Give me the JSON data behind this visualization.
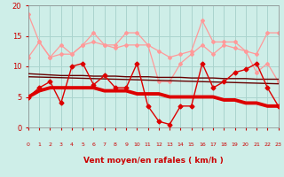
{
  "x": [
    0,
    1,
    2,
    3,
    4,
    5,
    6,
    7,
    8,
    9,
    10,
    11,
    12,
    13,
    14,
    15,
    16,
    17,
    18,
    19,
    20,
    21,
    22,
    23
  ],
  "series": {
    "light_pink_top": [
      18.5,
      14.0,
      11.5,
      13.5,
      12.0,
      13.5,
      15.5,
      13.5,
      13.5,
      15.5,
      15.5,
      13.5,
      12.5,
      11.5,
      12.0,
      12.5,
      17.5,
      14.0,
      14.0,
      14.0,
      12.5,
      12.0,
      15.5,
      15.5
    ],
    "light_pink_mid": [
      11.5,
      14.0,
      11.5,
      12.0,
      12.0,
      13.5,
      14.0,
      13.5,
      13.0,
      13.5,
      13.5,
      13.5,
      7.5,
      7.5,
      10.5,
      12.0,
      13.5,
      12.0,
      13.5,
      13.0,
      12.5,
      9.0,
      10.5,
      7.5
    ],
    "dark_line1": [
      8.8,
      8.7,
      8.6,
      8.5,
      8.5,
      8.5,
      8.4,
      8.4,
      8.4,
      8.3,
      8.3,
      8.3,
      8.2,
      8.2,
      8.2,
      8.1,
      8.1,
      8.1,
      8.0,
      8.0,
      8.0,
      7.9,
      7.9,
      7.9
    ],
    "dark_line2": [
      8.3,
      8.25,
      8.2,
      8.15,
      8.1,
      8.05,
      8.0,
      7.95,
      7.9,
      7.85,
      7.8,
      7.75,
      7.7,
      7.65,
      7.6,
      7.55,
      7.5,
      7.45,
      7.4,
      7.35,
      7.3,
      7.25,
      7.2,
      7.15
    ],
    "medium_red": [
      5.0,
      6.5,
      7.5,
      4.0,
      10.0,
      10.5,
      7.0,
      8.5,
      6.5,
      6.5,
      10.5,
      3.5,
      1.0,
      0.5,
      3.5,
      3.5,
      10.5,
      6.5,
      7.5,
      9.0,
      9.5,
      10.5,
      6.5,
      3.5
    ],
    "dark_red_thick": [
      5.0,
      6.0,
      6.5,
      6.5,
      6.5,
      6.5,
      6.5,
      6.0,
      6.0,
      6.0,
      5.5,
      5.5,
      5.5,
      5.0,
      5.0,
      5.0,
      5.0,
      5.0,
      4.5,
      4.5,
      4.0,
      4.0,
      3.5,
      3.5
    ]
  },
  "arrows": [
    "↓",
    "↘",
    "↙",
    "↓",
    "↓",
    "↙",
    "↘",
    "↓",
    "↙",
    "←",
    "←",
    "←",
    "←",
    "←",
    "↗",
    "→",
    "→",
    "→",
    "→",
    "↘",
    "↘",
    "↘",
    "↘"
  ],
  "xlabel": "Vent moyen/en rafales ( km/h )",
  "ylim": [
    0,
    20
  ],
  "xlim": [
    0,
    23
  ],
  "yticks": [
    0,
    5,
    10,
    15,
    20
  ],
  "bg_color": "#ceeee8",
  "grid_color": "#aad4ce",
  "line_pink": "#ff9999",
  "line_dark": "#660000",
  "line_red": "#dd0000",
  "axis_color": "#cc0000"
}
